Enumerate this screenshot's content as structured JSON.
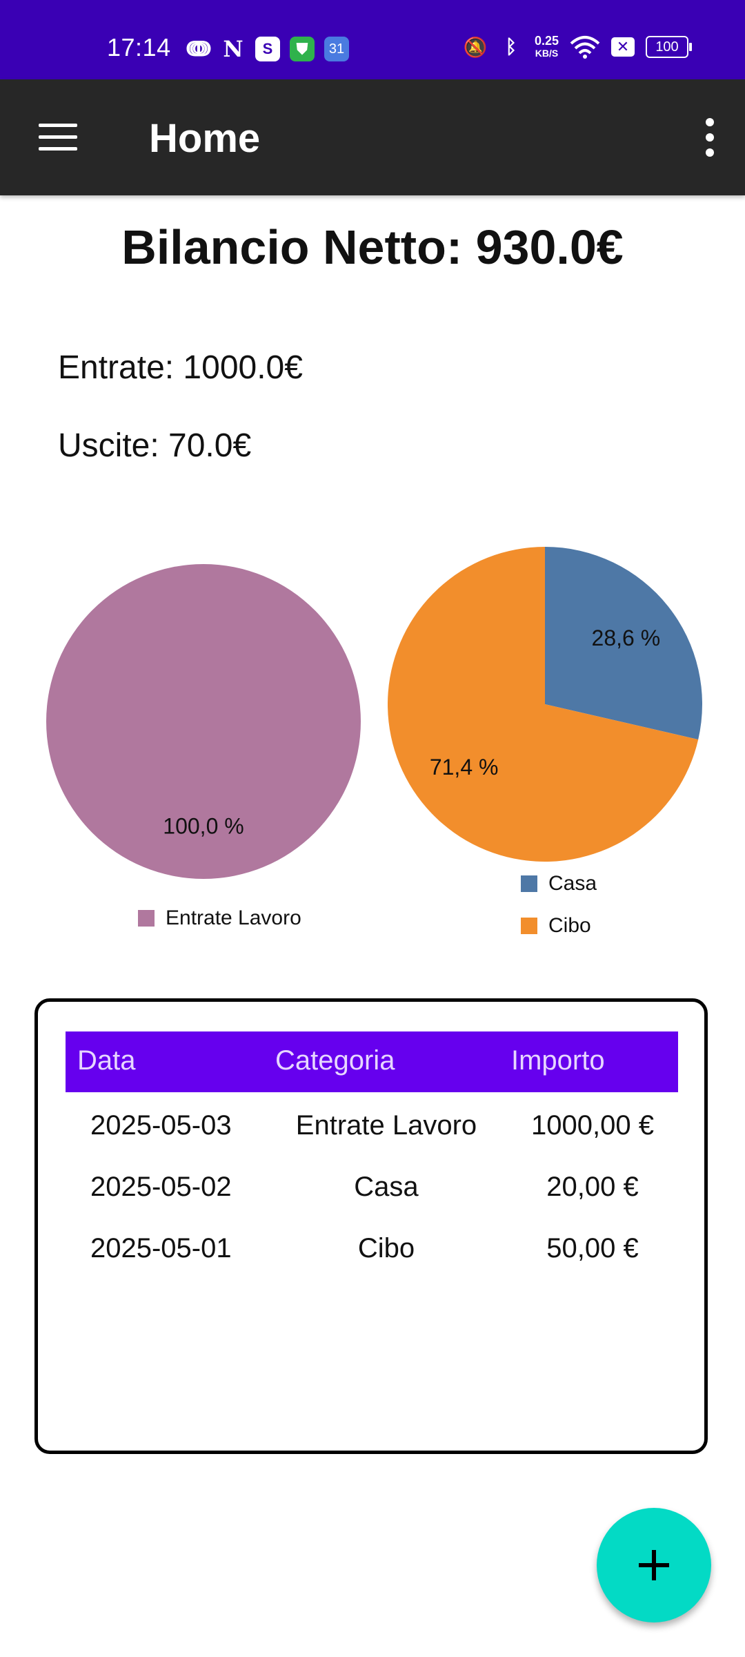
{
  "status_bar": {
    "time": "17:14",
    "calendar_day": "31",
    "net_speed_value": "0.25",
    "net_speed_unit": "KB/S",
    "battery": "100"
  },
  "appbar": {
    "title": "Home"
  },
  "summary": {
    "balance": "Bilancio Netto: 930.0€",
    "income": "Entrate: 1000.0€",
    "expense": "Uscite: 70.0€"
  },
  "chart_data": [
    {
      "type": "pie",
      "slices": [
        {
          "label": "Entrate Lavoro",
          "value": 100.0,
          "display": "100,0 %",
          "color": "#b0789e"
        }
      ]
    },
    {
      "type": "pie",
      "slices": [
        {
          "label": "Casa",
          "value": 28.6,
          "display": "28,6 %",
          "color": "#4e78a6"
        },
        {
          "label": "Cibo",
          "value": 71.4,
          "display": "71,4 %",
          "color": "#f28e2c"
        }
      ]
    }
  ],
  "table": {
    "headers": {
      "data": "Data",
      "category": "Categoria",
      "amount": "Importo"
    },
    "rows": [
      {
        "data": "2025-05-03",
        "category": "Entrate Lavoro",
        "amount": "1000,00 €"
      },
      {
        "data": "2025-05-02",
        "category": "Casa",
        "amount": "20,00 €"
      },
      {
        "data": "2025-05-01",
        "category": "Cibo",
        "amount": "50,00 €"
      }
    ]
  },
  "colors": {
    "status_bar": "#3a00b4",
    "appbar": "#272727",
    "table_header": "#6600ee",
    "fab": "#03dac5"
  }
}
